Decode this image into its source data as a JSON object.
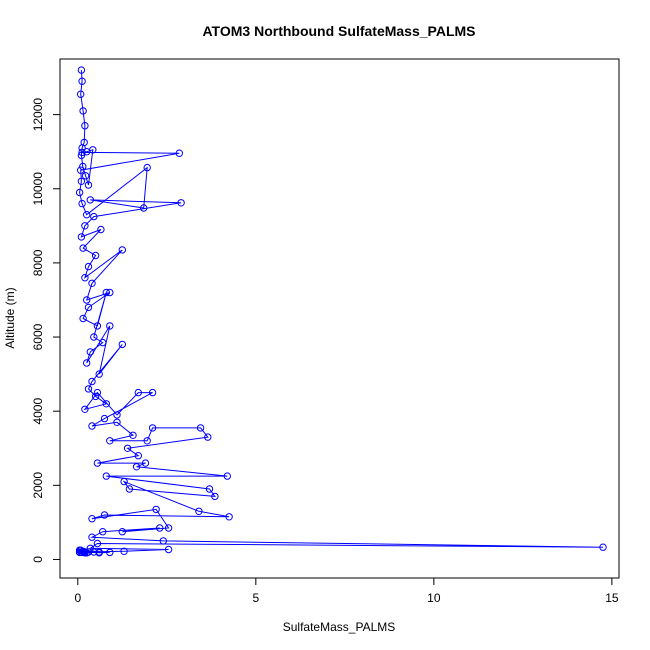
{
  "chart_data": {
    "type": "scatter",
    "title": "ATOM3 Northbound SulfateMass_PALMS",
    "xlabel": "SulfateMass_PALMS",
    "ylabel": "Altitude (m)",
    "xlim": [
      -0.5,
      15.2
    ],
    "ylim": [
      -500,
      13500
    ],
    "x_ticks": [
      0,
      5,
      10,
      15
    ],
    "y_ticks": [
      0,
      2000,
      4000,
      6000,
      8000,
      10000,
      12000
    ],
    "grid": false,
    "legend": "none",
    "line_color": "#0000ff",
    "marker": "open-circle",
    "connect_points": true,
    "series": [
      {
        "x": [
          0.1,
          0.12,
          0.08,
          0.15,
          0.2,
          0.18,
          0.12,
          0.1,
          0.14,
          0.22,
          0.3,
          0.42,
          0.25,
          0.12,
          2.85,
          0.08,
          0.1,
          0.05,
          0.12,
          0.25,
          1.95,
          1.85,
          0.35,
          2.9,
          0.45,
          0.2,
          0.1,
          0.65,
          0.15,
          0.5,
          0.3,
          0.2,
          1.25,
          0.4,
          0.25,
          0.9,
          0.3,
          0.15,
          0.55,
          0.8,
          0.45,
          0.7,
          0.35,
          0.25,
          0.9,
          0.6,
          1.25,
          0.4,
          0.3,
          0.5,
          0.8,
          0.2,
          0.55,
          1.1,
          1.7,
          2.1,
          0.75,
          0.4,
          1.1,
          1.55,
          0.9,
          1.95,
          2.1,
          3.45,
          3.65,
          1.4,
          1.7,
          0.55,
          1.9,
          1.65,
          4.2,
          0.8,
          3.7,
          3.85,
          1.45,
          1.3,
          3.4,
          4.25,
          0.75,
          0.4,
          2.2,
          2.55,
          1.25,
          2.3,
          0.7,
          0.4,
          2.4,
          14.75,
          0.55,
          0.35,
          2.55,
          1.3,
          0.2,
          0.6,
          0.9,
          0.05,
          0.1,
          0.2,
          0.3,
          0.05,
          0.15,
          0.45,
          0.08,
          0.12,
          0.6,
          0.25,
          0.18,
          0.05
        ],
        "y": [
          13200,
          12900,
          12550,
          12100,
          11700,
          11250,
          11100,
          10900,
          10600,
          10350,
          10100,
          11050,
          11000,
          10980,
          10960,
          10500,
          10200,
          9900,
          9600,
          9300,
          10570,
          9480,
          9700,
          9620,
          9250,
          9000,
          8700,
          8900,
          8400,
          8200,
          7900,
          7600,
          8350,
          7450,
          7000,
          7200,
          6800,
          6500,
          6300,
          7200,
          6000,
          5850,
          5600,
          5300,
          6300,
          5000,
          5800,
          4800,
          4600,
          4400,
          4200,
          4050,
          4500,
          3900,
          4500,
          4500,
          3800,
          3600,
          3700,
          3350,
          3200,
          3200,
          3550,
          3550,
          3300,
          3000,
          2800,
          2600,
          2600,
          2500,
          2250,
          2250,
          1900,
          1700,
          1900,
          2100,
          1300,
          1150,
          1200,
          1100,
          1350,
          850,
          750,
          850,
          750,
          600,
          500,
          330,
          430,
          300,
          270,
          220,
          200,
          180,
          190,
          250,
          200,
          180,
          200,
          190,
          220,
          200,
          250,
          190,
          200,
          180,
          200,
          200
        ]
      }
    ]
  }
}
